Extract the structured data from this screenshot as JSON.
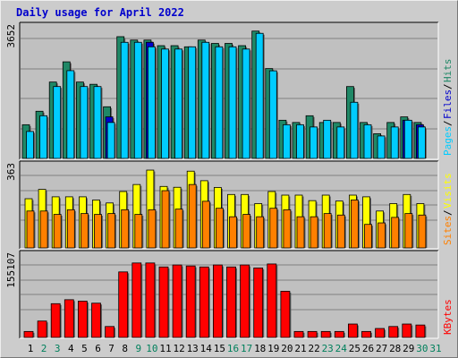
{
  "page": {
    "title": "Daily usage for April 2022"
  },
  "chart_data": [
    {
      "type": "bar",
      "panel": "hits-files-pages",
      "categories": [
        "1",
        "2",
        "3",
        "4",
        "5",
        "6",
        "7",
        "8",
        "9",
        "10",
        "11",
        "12",
        "13",
        "14",
        "15",
        "16",
        "17",
        "18",
        "19",
        "20",
        "21",
        "22",
        "23",
        "24",
        "25",
        "26",
        "27",
        "28",
        "29",
        "30",
        "31"
      ],
      "ymax_label": "3652",
      "ymax": 3652,
      "right_labels": [
        {
          "text": "Pages",
          "color": "#00ccff"
        },
        {
          "text": "Files",
          "color": "#0000cc"
        },
        {
          "text": "Hits",
          "color": "#1f8866"
        }
      ],
      "series": [
        {
          "name": "Hits",
          "color": "#1f8866",
          "values": [
            975,
            1365,
            2210,
            2795,
            2210,
            2145,
            1495,
            3523,
            3425,
            3425,
            3263,
            3263,
            3230,
            3425,
            3328,
            3328,
            3263,
            3685,
            2600,
            1105,
            1040,
            1235,
            1040,
            1040,
            2080,
            1040,
            715,
            1040,
            1202,
            1040,
            0
          ]
        },
        {
          "name": "Files",
          "color": "#0000cc",
          "values": [
            0,
            0,
            0,
            0,
            0,
            0,
            1202,
            0,
            0,
            3360,
            0,
            0,
            0,
            0,
            0,
            0,
            0,
            0,
            0,
            0,
            0,
            0,
            0,
            0,
            0,
            0,
            0,
            0,
            1105,
            975,
            0
          ]
        },
        {
          "name": "Pages",
          "color": "#00ccff",
          "values": [
            780,
            1235,
            2080,
            2540,
            2080,
            2080,
            1040,
            3360,
            3360,
            3230,
            3165,
            3165,
            3230,
            3360,
            3230,
            3230,
            3165,
            3620,
            2535,
            975,
            975,
            910,
            1105,
            910,
            1625,
            975,
            650,
            910,
            1105,
            910,
            0
          ]
        }
      ]
    },
    {
      "type": "bar",
      "panel": "visits-sites",
      "categories": [
        "1",
        "2",
        "3",
        "4",
        "5",
        "6",
        "7",
        "8",
        "9",
        "10",
        "11",
        "12",
        "13",
        "14",
        "15",
        "16",
        "17",
        "18",
        "19",
        "20",
        "21",
        "22",
        "23",
        "24",
        "25",
        "26",
        "27",
        "28",
        "29",
        "30",
        "31"
      ],
      "ymax_label": "363",
      "ymax": 363,
      "right_labels": [
        {
          "text": "Sites",
          "color": "#ff8000"
        },
        {
          "text": "Visits",
          "color": "#ffff00"
        }
      ],
      "series": [
        {
          "name": "Visits",
          "color": "#ffff00",
          "values": [
            232,
            276,
            241,
            241,
            241,
            226,
            212,
            266,
            299,
            367,
            290,
            286,
            362,
            317,
            285,
            252,
            252,
            209,
            266,
            249,
            249,
            223,
            249,
            221,
            249,
            241,
            174,
            209,
            252,
            209,
            0
          ]
        },
        {
          "name": "Sites",
          "color": "#ff8000",
          "values": [
            174,
            174,
            158,
            180,
            162,
            158,
            162,
            180,
            158,
            180,
            270,
            183,
            299,
            220,
            187,
            147,
            158,
            147,
            187,
            180,
            147,
            147,
            162,
            155,
            226,
            111,
            118,
            144,
            162,
            155,
            0
          ]
        }
      ]
    },
    {
      "type": "bar",
      "panel": "kbytes",
      "categories": [
        "1",
        "2",
        "3",
        "4",
        "5",
        "6",
        "7",
        "8",
        "9",
        "10",
        "11",
        "12",
        "13",
        "14",
        "15",
        "16",
        "17",
        "18",
        "19",
        "20",
        "21",
        "22",
        "23",
        "24",
        "25",
        "26",
        "27",
        "28",
        "29",
        "30",
        "31"
      ],
      "ymax_label": "155107",
      "ymax": 155107,
      "right_labels": [
        {
          "text": "KBytes",
          "color": "#ff0000"
        }
      ],
      "series": [
        {
          "name": "KBytes",
          "color": "#ff0000",
          "values": [
            12000,
            33000,
            68000,
            76000,
            73000,
            69000,
            22000,
            132000,
            150000,
            150000,
            142000,
            146000,
            144000,
            142000,
            146000,
            142000,
            146000,
            140000,
            148000,
            93000,
            12000,
            12000,
            12000,
            12000,
            27000,
            12000,
            18000,
            22000,
            27000,
            25000,
            0
          ]
        }
      ]
    }
  ],
  "x_axis": {
    "labels": [
      "1",
      "2",
      "3",
      "4",
      "5",
      "6",
      "7",
      "8",
      "9",
      "10",
      "11",
      "12",
      "13",
      "14",
      "15",
      "16",
      "17",
      "18",
      "19",
      "20",
      "21",
      "22",
      "23",
      "24",
      "25",
      "26",
      "27",
      "28",
      "29",
      "30",
      "31"
    ],
    "weekend_days": [
      "2",
      "3",
      "9",
      "10",
      "16",
      "17",
      "23",
      "24",
      "30",
      "31"
    ],
    "weekday_color": "#000000",
    "weekend_color": "#00805c"
  }
}
